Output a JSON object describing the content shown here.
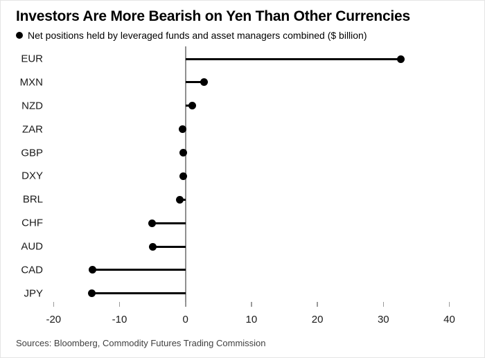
{
  "footer": {
    "sources": "Sources: Bloomberg, Commodity Futures Trading Commission"
  },
  "chart_data": {
    "type": "bar",
    "style": "horizontal-lollipop",
    "title": "Investors Are More Bearish on Yen Than Other Currencies",
    "legend": "Net positions held by leveraged funds and asset managers combined ($ billion)",
    "legend_position": "top-left",
    "categories": [
      "EUR",
      "MXN",
      "NZD",
      "ZAR",
      "GBP",
      "DXY",
      "BRL",
      "CHF",
      "AUD",
      "CAD",
      "JPY"
    ],
    "values": [
      32.6,
      2.8,
      1.0,
      -0.4,
      -0.3,
      -0.3,
      -0.9,
      -5.1,
      -5.0,
      -14.1,
      -14.2
    ],
    "xlabel": "",
    "ylabel": "",
    "xlim": [
      -20,
      40
    ],
    "xticks": [
      -20,
      -10,
      0,
      10,
      20,
      30,
      40
    ],
    "grid": false,
    "colors": {
      "dot": "#000000",
      "stem": "#000000",
      "axis_line": "#8f8f8f",
      "tick": "#9a9a9a",
      "label_text": "#1a1a1a",
      "source_text": "#404040"
    }
  }
}
